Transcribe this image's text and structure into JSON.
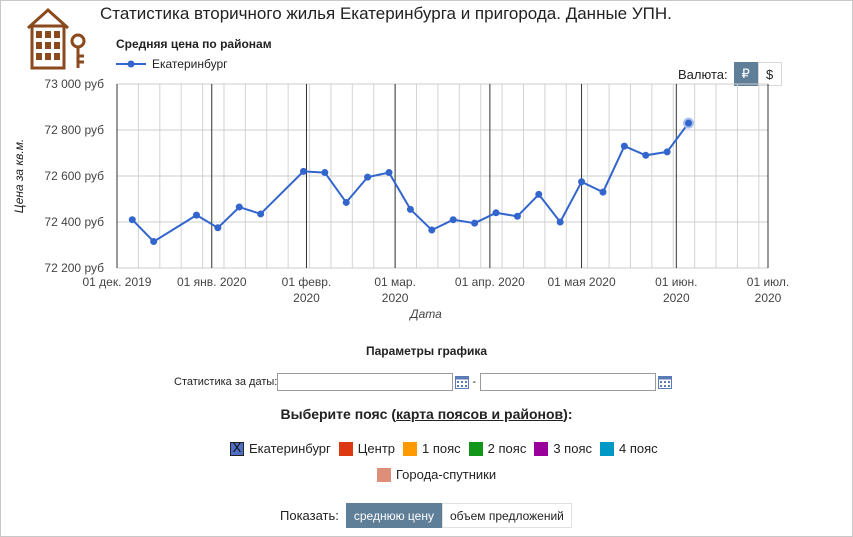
{
  "page_title": "Статистика вторичного жилья Екатеринбурга и пригорода. Данные УПН.",
  "currency": {
    "label": "Валюта:",
    "options": [
      "₽",
      "$"
    ],
    "selected": "₽"
  },
  "chart_data": {
    "type": "line",
    "title": "Средняя цена по районам",
    "xlabel": "Дата",
    "ylabel": "Цена за кв.м.",
    "ylim": [
      72200,
      73000
    ],
    "y_ticks": [
      "73 000 руб",
      "72 800 руб",
      "72 600 руб",
      "72 400 руб",
      "72 200 руб"
    ],
    "y_tick_values": [
      73000,
      72800,
      72600,
      72400,
      72200
    ],
    "x_range": [
      "2019-12-01",
      "2020-07-01"
    ],
    "x_ticks": [
      {
        "date": "2019-12-01",
        "line1": "01 дек. 2019",
        "line2": ""
      },
      {
        "date": "2020-01-01",
        "line1": "01 янв. 2020",
        "line2": ""
      },
      {
        "date": "2020-02-01",
        "line1": "01 февр.",
        "line2": "2020"
      },
      {
        "date": "2020-03-01",
        "line1": "01 мар.",
        "line2": "2020"
      },
      {
        "date": "2020-04-01",
        "line1": "01 апр. 2020",
        "line2": ""
      },
      {
        "date": "2020-05-01",
        "line1": "01 мая 2020",
        "line2": ""
      },
      {
        "date": "2020-06-01",
        "line1": "01 июн.",
        "line2": "2020"
      },
      {
        "date": "2020-07-01",
        "line1": "01 июл.",
        "line2": "2020"
      }
    ],
    "grid": true,
    "legend_position": "top-left",
    "series": [
      {
        "name": "Екатеринбург",
        "color": "#3366cc",
        "points": [
          {
            "x": "2019-12-06",
            "y": 72410
          },
          {
            "x": "2019-12-13",
            "y": 72315
          },
          {
            "x": "2019-12-27",
            "y": 72430
          },
          {
            "x": "2020-01-03",
            "y": 72375
          },
          {
            "x": "2020-01-10",
            "y": 72465
          },
          {
            "x": "2020-01-17",
            "y": 72435
          },
          {
            "x": "2020-01-31",
            "y": 72620
          },
          {
            "x": "2020-02-07",
            "y": 72615
          },
          {
            "x": "2020-02-14",
            "y": 72485
          },
          {
            "x": "2020-02-21",
            "y": 72595
          },
          {
            "x": "2020-02-28",
            "y": 72615
          },
          {
            "x": "2020-03-06",
            "y": 72455
          },
          {
            "x": "2020-03-13",
            "y": 72365
          },
          {
            "x": "2020-03-20",
            "y": 72410
          },
          {
            "x": "2020-03-27",
            "y": 72395
          },
          {
            "x": "2020-04-03",
            "y": 72440
          },
          {
            "x": "2020-04-10",
            "y": 72425
          },
          {
            "x": "2020-04-17",
            "y": 72520
          },
          {
            "x": "2020-04-24",
            "y": 72400
          },
          {
            "x": "2020-05-01",
            "y": 72575
          },
          {
            "x": "2020-05-08",
            "y": 72530
          },
          {
            "x": "2020-05-15",
            "y": 72730
          },
          {
            "x": "2020-05-22",
            "y": 72690
          },
          {
            "x": "2020-05-29",
            "y": 72705
          },
          {
            "x": "2020-06-05",
            "y": 72830
          }
        ]
      }
    ]
  },
  "params": {
    "title": "Параметры графика",
    "dates_label": "Статистика за даты:",
    "date_from": "",
    "date_to": "",
    "separator": "-",
    "calendar_icon": "calendar-icon"
  },
  "zones": {
    "title_prefix": "Выберите пояс (",
    "title_link": "карта поясов и районов",
    "title_suffix": "):",
    "items": [
      {
        "label": "Екатеринбург",
        "color": "#4f6fc4",
        "checked": true
      },
      {
        "label": "Центр",
        "color": "#dc3912",
        "checked": false
      },
      {
        "label": "1 пояс",
        "color": "#ff9900",
        "checked": false
      },
      {
        "label": "2 пояс",
        "color": "#109618",
        "checked": false
      },
      {
        "label": "3 пояс",
        "color": "#990099",
        "checked": false
      },
      {
        "label": "4 пояс",
        "color": "#0099c6",
        "checked": false
      },
      {
        "label": "Города-спутники",
        "color": "#dd8f7a",
        "checked": false
      }
    ],
    "checked_mark": "X"
  },
  "show": {
    "label": "Показать:",
    "options": [
      "среднюю цену",
      "объем предложений"
    ],
    "selected": "среднюю цену"
  }
}
